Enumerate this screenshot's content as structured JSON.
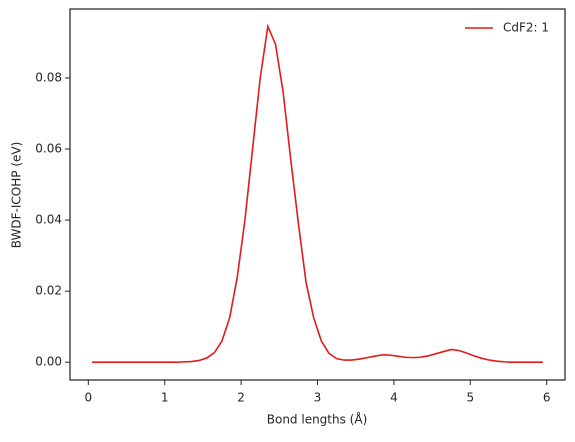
{
  "chart_data": {
    "type": "line",
    "x_label": "Bond lengths (Å)",
    "y_label": "BWDF-ICOHP (eV)",
    "x": [
      0.05,
      0.15,
      0.25,
      0.35,
      0.45,
      0.55,
      0.65,
      0.75,
      0.85,
      0.95,
      1.05,
      1.15,
      1.25,
      1.35,
      1.45,
      1.55,
      1.65,
      1.75,
      1.85,
      1.95,
      2.05,
      2.15,
      2.25,
      2.35,
      2.45,
      2.55,
      2.65,
      2.75,
      2.85,
      2.95,
      3.05,
      3.15,
      3.25,
      3.35,
      3.45,
      3.55,
      3.65,
      3.75,
      3.85,
      3.95,
      4.05,
      4.15,
      4.25,
      4.35,
      4.45,
      4.55,
      4.65,
      4.75,
      4.85,
      4.95,
      5.05,
      5.15,
      5.25,
      5.35,
      5.45,
      5.55,
      5.65,
      5.75,
      5.85,
      5.95
    ],
    "series": [
      {
        "name": "CdF2: 1",
        "color": "#e31a1c",
        "values": [
          0,
          0,
          0,
          0,
          0,
          0,
          0,
          0,
          0,
          0,
          0,
          0,
          0.0001,
          0.0002,
          0.0005,
          0.0012,
          0.0027,
          0.006,
          0.0125,
          0.024,
          0.04,
          0.06,
          0.08,
          0.0945,
          0.0895,
          0.076,
          0.057,
          0.039,
          0.0225,
          0.0125,
          0.006,
          0.0025,
          0.001,
          0.0006,
          0.0006,
          0.0009,
          0.0013,
          0.0017,
          0.0021,
          0.002,
          0.0017,
          0.0014,
          0.0013,
          0.0014,
          0.0018,
          0.0024,
          0.003,
          0.0036,
          0.0033,
          0.0026,
          0.0018,
          0.0011,
          0.0006,
          0.0003,
          0.0001,
          0,
          0,
          0,
          0,
          0
        ]
      }
    ],
    "xlim": [
      -0.24,
      6.24
    ],
    "xticks": [
      0,
      1,
      2,
      3,
      4,
      5,
      6
    ],
    "ylim": [
      -0.005,
      0.0994
    ],
    "yticks": [
      {
        "value": 0,
        "label": "0.00"
      },
      {
        "value": 0.02,
        "label": "0.02"
      },
      {
        "value": 0.04,
        "label": "0.04"
      },
      {
        "value": 0.06,
        "label": "0.06"
      },
      {
        "value": 0.08,
        "label": "0.08"
      }
    ],
    "legend": "upper right"
  }
}
